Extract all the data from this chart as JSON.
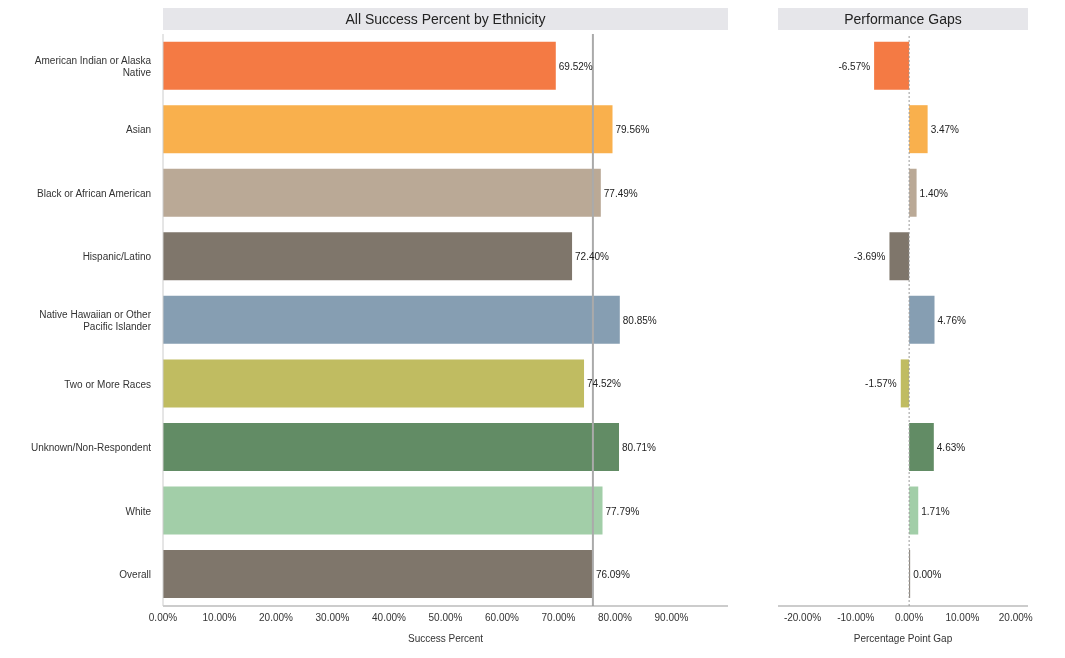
{
  "chart_data": [
    {
      "type": "bar",
      "orientation": "horizontal",
      "title": "All Success Percent by Ethnicity",
      "xlabel": "Success Percent",
      "categories": [
        "American Indian or Alaska Native",
        "Asian",
        "Black or African American",
        "Hispanic/Latino",
        "Native Hawaiian or Other Pacific Islander",
        "Two or More Races",
        "Unknown/Non-Respondent",
        "White",
        "Overall"
      ],
      "values": [
        69.52,
        79.56,
        77.49,
        72.4,
        80.85,
        74.52,
        80.71,
        77.79,
        76.09
      ],
      "colors": [
        "#f47a44",
        "#f9b04d",
        "#baa996",
        "#7f766b",
        "#869eb2",
        "#c0bc61",
        "#628c65",
        "#a2cea8",
        "#7f766b"
      ],
      "value_labels": [
        "69.52%",
        "79.56%",
        "77.49%",
        "72.40%",
        "80.85%",
        "74.52%",
        "80.71%",
        "77.79%",
        "76.09%"
      ],
      "xlim": [
        0,
        100
      ],
      "xticks": [
        {
          "value": 0,
          "label": "0.00%"
        },
        {
          "value": 10,
          "label": "10.00%"
        },
        {
          "value": 20,
          "label": "20.00%"
        },
        {
          "value": 30,
          "label": "30.00%"
        },
        {
          "value": 40,
          "label": "40.00%"
        },
        {
          "value": 50,
          "label": "50.00%"
        },
        {
          "value": 60,
          "label": "60.00%"
        },
        {
          "value": 70,
          "label": "70.00%"
        },
        {
          "value": 80,
          "label": "80.00%"
        },
        {
          "value": 90,
          "label": "90.00%"
        }
      ],
      "ref_lines": [
        {
          "axis": "x",
          "value": 76.09,
          "color": "#aaaaaa",
          "line_style": "solid"
        }
      ],
      "grid": false,
      "legend": false
    },
    {
      "type": "bar",
      "orientation": "horizontal",
      "title": "Performance Gaps",
      "xlabel": "Percentage Point Gap",
      "categories": [
        null,
        null,
        null,
        null,
        null,
        null,
        null,
        null,
        null
      ],
      "values": [
        -6.57,
        3.47,
        1.4,
        -3.69,
        4.76,
        -1.57,
        4.63,
        1.71,
        0.0
      ],
      "colors": [
        "#f47a44",
        "#f9b04d",
        "#baa996",
        "#7f766b",
        "#869eb2",
        "#c0bc61",
        "#628c65",
        "#a2cea8",
        "#7f766b"
      ],
      "value_labels": [
        "-6.57%",
        "3.47%",
        "1.40%",
        "-3.69%",
        "4.76%",
        "-1.57%",
        "4.63%",
        "1.71%",
        "0.00%"
      ],
      "xlim": [
        -24.6,
        22.3
      ],
      "xticks": [
        {
          "value": -20,
          "label": "-20.00%"
        },
        {
          "value": -10,
          "label": "-10.00%"
        },
        {
          "value": 0,
          "label": "0.00%"
        },
        {
          "value": 10,
          "label": "10.00%"
        },
        {
          "value": 20,
          "label": "20.00%"
        }
      ],
      "ref_lines": [
        {
          "axis": "x",
          "value": 0,
          "color": "#999999",
          "line_style": "dotted"
        }
      ],
      "tick_labels": "x",
      "grid": false,
      "legend": false
    }
  ]
}
